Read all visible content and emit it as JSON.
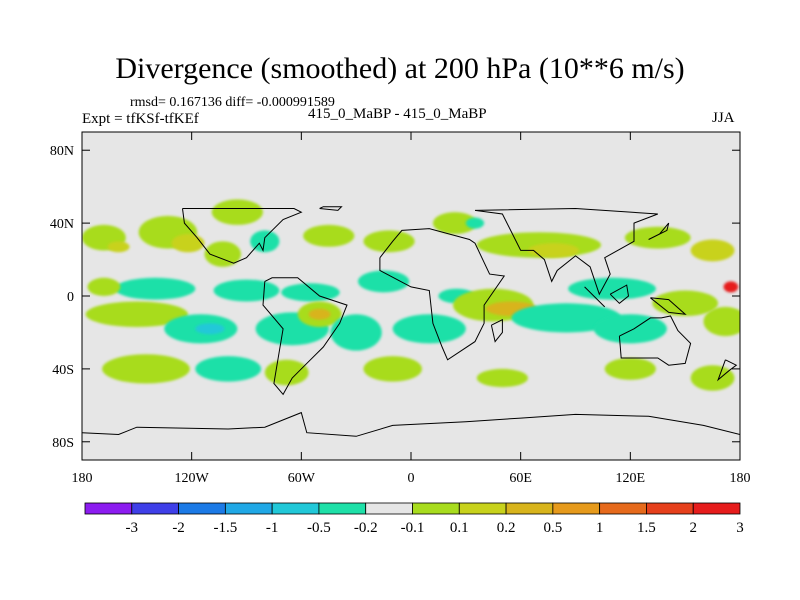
{
  "header": {
    "title": "Divergence (smoothed) at 200 hPa (10**6 m/s)",
    "stats": "rmsd= 0.167136 diff= -0.000991589",
    "expt": "Expt = tfKSf-tfKEf",
    "cases": "415_0_MaBP - 415_0_MaBP",
    "season": "JJA"
  },
  "chart_data": {
    "type": "heatmap",
    "title": "Divergence (smoothed) at 200 hPa (10**6 m/s)",
    "xlabel": "",
    "ylabel": "",
    "xlim": [
      -180,
      180
    ],
    "ylim": [
      -90,
      90
    ],
    "x_ticks": [
      {
        "value": -180,
        "label": "180"
      },
      {
        "value": -120,
        "label": "120W"
      },
      {
        "value": -60,
        "label": "60W"
      },
      {
        "value": 0,
        "label": "0"
      },
      {
        "value": 60,
        "label": "60E"
      },
      {
        "value": 120,
        "label": "120E"
      },
      {
        "value": 180,
        "label": "180"
      }
    ],
    "y_ticks": [
      {
        "value": 80,
        "label": "80N"
      },
      {
        "value": 40,
        "label": "40N"
      },
      {
        "value": 0,
        "label": "0"
      },
      {
        "value": -40,
        "label": "40S"
      },
      {
        "value": -80,
        "label": "80S"
      }
    ],
    "colorbar": {
      "colors": [
        "#8c1cf0",
        "#3f3fe8",
        "#1c7ae6",
        "#20a8e6",
        "#21c8d8",
        "#1ee0a8",
        "#e6e6e6",
        "#a8dc1e",
        "#c8d21c",
        "#d8b41c",
        "#e69a1c",
        "#e66a1c",
        "#e6401c",
        "#e61c1c"
      ],
      "labels": [
        "-3",
        "-2",
        "-1.5",
        "-1",
        "-0.5",
        "-0.2",
        "-0.1",
        "0.1",
        "0.2",
        "0.5",
        "1",
        "1.5",
        "2",
        "3"
      ]
    },
    "blobs": [
      {
        "lon": -168,
        "lat": 32,
        "rlon": 12,
        "rlat": 7,
        "level": 7
      },
      {
        "lon": -160,
        "lat": 27,
        "rlon": 6,
        "rlat": 3,
        "level": 8
      },
      {
        "lon": -133,
        "lat": 35,
        "rlon": 16,
        "rlat": 9,
        "level": 7
      },
      {
        "lon": -122,
        "lat": 29,
        "rlon": 9,
        "rlat": 5,
        "level": 8
      },
      {
        "lon": -95,
        "lat": 46,
        "rlon": 14,
        "rlat": 7,
        "level": 7
      },
      {
        "lon": -103,
        "lat": 23,
        "rlon": 10,
        "rlat": 7,
        "level": 7
      },
      {
        "lon": -80,
        "lat": 30,
        "rlon": 8,
        "rlat": 6,
        "level": 5
      },
      {
        "lon": -45,
        "lat": 33,
        "rlon": 14,
        "rlat": 6,
        "level": 7
      },
      {
        "lon": -12,
        "lat": 30,
        "rlon": 14,
        "rlat": 6,
        "level": 7
      },
      {
        "lon": 24,
        "lat": 40,
        "rlon": 12,
        "rlat": 6,
        "level": 7
      },
      {
        "lon": 70,
        "lat": 28,
        "rlon": 34,
        "rlat": 7,
        "level": 7
      },
      {
        "lon": 78,
        "lat": 25,
        "rlon": 14,
        "rlat": 4,
        "level": 8
      },
      {
        "lon": 135,
        "lat": 32,
        "rlon": 18,
        "rlat": 6,
        "level": 7
      },
      {
        "lon": 165,
        "lat": 25,
        "rlon": 12,
        "rlat": 6,
        "level": 8
      },
      {
        "lon": -140,
        "lat": 4,
        "rlon": 22,
        "rlat": 6,
        "level": 5
      },
      {
        "lon": -90,
        "lat": 3,
        "rlon": 18,
        "rlat": 6,
        "level": 5
      },
      {
        "lon": -55,
        "lat": 2,
        "rlon": 16,
        "rlat": 5,
        "level": 5
      },
      {
        "lon": -15,
        "lat": 8,
        "rlon": 14,
        "rlat": 6,
        "level": 5
      },
      {
        "lon": 25,
        "lat": 0,
        "rlon": 10,
        "rlat": 4,
        "level": 5
      },
      {
        "lon": 110,
        "lat": 4,
        "rlon": 24,
        "rlat": 6,
        "level": 5
      },
      {
        "lon": -168,
        "lat": 5,
        "rlon": 9,
        "rlat": 5,
        "level": 7
      },
      {
        "lon": -150,
        "lat": -10,
        "rlon": 28,
        "rlat": 7,
        "level": 7
      },
      {
        "lon": -115,
        "lat": -18,
        "rlon": 20,
        "rlat": 8,
        "level": 5
      },
      {
        "lon": -110,
        "lat": -18,
        "rlon": 8,
        "rlat": 3,
        "level": 4
      },
      {
        "lon": -65,
        "lat": -18,
        "rlon": 20,
        "rlat": 9,
        "level": 5
      },
      {
        "lon": -50,
        "lat": -10,
        "rlon": 12,
        "rlat": 7,
        "level": 7
      },
      {
        "lon": -50,
        "lat": -10,
        "rlon": 6,
        "rlat": 3,
        "level": 9
      },
      {
        "lon": -30,
        "lat": -20,
        "rlon": 14,
        "rlat": 10,
        "level": 5
      },
      {
        "lon": 10,
        "lat": -18,
        "rlon": 20,
        "rlat": 8,
        "level": 5
      },
      {
        "lon": 45,
        "lat": -5,
        "rlon": 22,
        "rlat": 9,
        "level": 7
      },
      {
        "lon": 55,
        "lat": -7,
        "rlon": 14,
        "rlat": 4,
        "level": 9
      },
      {
        "lon": 85,
        "lat": -12,
        "rlon": 30,
        "rlat": 8,
        "level": 5
      },
      {
        "lon": 120,
        "lat": -18,
        "rlon": 20,
        "rlat": 8,
        "level": 5
      },
      {
        "lon": 150,
        "lat": -4,
        "rlon": 18,
        "rlat": 7,
        "level": 7
      },
      {
        "lon": 172,
        "lat": -14,
        "rlon": 12,
        "rlat": 8,
        "level": 7
      },
      {
        "lon": -145,
        "lat": -40,
        "rlon": 24,
        "rlat": 8,
        "level": 7
      },
      {
        "lon": -100,
        "lat": -40,
        "rlon": 18,
        "rlat": 7,
        "level": 5
      },
      {
        "lon": -68,
        "lat": -42,
        "rlon": 12,
        "rlat": 7,
        "level": 7
      },
      {
        "lon": -10,
        "lat": -40,
        "rlon": 16,
        "rlat": 7,
        "level": 7
      },
      {
        "lon": 50,
        "lat": -45,
        "rlon": 14,
        "rlat": 5,
        "level": 7
      },
      {
        "lon": 120,
        "lat": -40,
        "rlon": 14,
        "rlat": 6,
        "level": 7
      },
      {
        "lon": 165,
        "lat": -45,
        "rlon": 12,
        "rlat": 7,
        "level": 7
      },
      {
        "lon": 35,
        "lat": 40,
        "rlon": 5,
        "rlat": 3,
        "level": 5
      },
      {
        "lon": 175,
        "lat": 5,
        "rlon": 4,
        "rlat": 3,
        "level": 13
      }
    ],
    "coastlines": [
      {
        "name": "africa-outline",
        "points": [
          [
            -17,
            21
          ],
          [
            -10,
            30
          ],
          [
            -5,
            36
          ],
          [
            10,
            37
          ],
          [
            32,
            31
          ],
          [
            35,
            29
          ],
          [
            43,
            12
          ],
          [
            51,
            11
          ],
          [
            40,
            -5
          ],
          [
            40,
            -15
          ],
          [
            35,
            -25
          ],
          [
            20,
            -35
          ],
          [
            17,
            -28
          ],
          [
            12,
            -15
          ],
          [
            10,
            3
          ],
          [
            0,
            5
          ],
          [
            -17,
            14
          ],
          [
            -17,
            21
          ]
        ]
      },
      {
        "name": "south-america-outline",
        "points": [
          [
            -80,
            8
          ],
          [
            -76,
            10
          ],
          [
            -62,
            10
          ],
          [
            -50,
            0
          ],
          [
            -35,
            -5
          ],
          [
            -39,
            -15
          ],
          [
            -48,
            -28
          ],
          [
            -58,
            -38
          ],
          [
            -65,
            -45
          ],
          [
            -70,
            -54
          ],
          [
            -75,
            -48
          ],
          [
            -72,
            -30
          ],
          [
            -70,
            -18
          ],
          [
            -81,
            -5
          ],
          [
            -80,
            8
          ]
        ]
      },
      {
        "name": "north-america-outline",
        "points": [
          [
            -125,
            48
          ],
          [
            -124,
            40
          ],
          [
            -117,
            32
          ],
          [
            -110,
            23
          ],
          [
            -97,
            18
          ],
          [
            -90,
            21
          ],
          [
            -83,
            29
          ],
          [
            -81,
            25
          ],
          [
            -80,
            32
          ],
          [
            -70,
            42
          ],
          [
            -60,
            46
          ],
          [
            -64,
            48
          ],
          [
            -78,
            48
          ],
          [
            -125,
            48
          ]
        ]
      },
      {
        "name": "asia-outline",
        "points": [
          [
            35,
            47
          ],
          [
            50,
            45
          ],
          [
            60,
            25
          ],
          [
            67,
            25
          ],
          [
            73,
            20
          ],
          [
            77,
            8
          ],
          [
            80,
            14
          ],
          [
            90,
            22
          ],
          [
            98,
            16
          ],
          [
            103,
            1
          ],
          [
            109,
            12
          ],
          [
            106,
            21
          ],
          [
            122,
            30
          ],
          [
            122,
            40
          ],
          [
            135,
            45
          ],
          [
            90,
            48
          ],
          [
            35,
            47
          ]
        ]
      },
      {
        "name": "australia-outline",
        "points": [
          [
            114,
            -22
          ],
          [
            122,
            -18
          ],
          [
            131,
            -12
          ],
          [
            137,
            -12
          ],
          [
            142,
            -11
          ],
          [
            146,
            -19
          ],
          [
            153,
            -26
          ],
          [
            150,
            -37
          ],
          [
            141,
            -38
          ],
          [
            135,
            -34
          ],
          [
            122,
            -34
          ],
          [
            115,
            -34
          ],
          [
            114,
            -22
          ]
        ]
      },
      {
        "name": "antarctica-outline",
        "points": [
          [
            -180,
            -75
          ],
          [
            -160,
            -76
          ],
          [
            -150,
            -72
          ],
          [
            -100,
            -73
          ],
          [
            -80,
            -72
          ],
          [
            -60,
            -64
          ],
          [
            -57,
            -75
          ],
          [
            -30,
            -77
          ],
          [
            -10,
            -71
          ],
          [
            30,
            -69
          ],
          [
            60,
            -67
          ],
          [
            90,
            -65
          ],
          [
            130,
            -66
          ],
          [
            160,
            -71
          ],
          [
            180,
            -76
          ]
        ]
      },
      {
        "name": "madagascar-outline",
        "points": [
          [
            44,
            -16
          ],
          [
            50,
            -13
          ],
          [
            50,
            -20
          ],
          [
            46,
            -25
          ],
          [
            44,
            -16
          ]
        ]
      },
      {
        "name": "new-zealand-outline",
        "points": [
          [
            172,
            -35
          ],
          [
            178,
            -38
          ],
          [
            174,
            -41
          ],
          [
            168,
            -46
          ],
          [
            172,
            -35
          ]
        ]
      },
      {
        "name": "greenland-outline",
        "points": [
          [
            -50,
            48
          ],
          [
            -40,
            47
          ],
          [
            -38,
            49
          ],
          [
            -48,
            49
          ],
          [
            -50,
            48
          ]
        ]
      },
      {
        "name": "borneo-outline",
        "points": [
          [
            109,
            1
          ],
          [
            118,
            6
          ],
          [
            119,
            0
          ],
          [
            114,
            -4
          ],
          [
            109,
            1
          ]
        ]
      },
      {
        "name": "sumatra-outline",
        "points": [
          [
            95,
            5
          ],
          [
            106,
            -6
          ],
          [
            103,
            -3
          ],
          [
            95,
            5
          ]
        ]
      },
      {
        "name": "new-guinea-outline",
        "points": [
          [
            131,
            -1
          ],
          [
            141,
            -2
          ],
          [
            150,
            -10
          ],
          [
            141,
            -9
          ],
          [
            131,
            -1
          ]
        ]
      },
      {
        "name": "japan-outline",
        "points": [
          [
            130,
            31
          ],
          [
            136,
            34
          ],
          [
            141,
            40
          ],
          [
            140,
            36
          ],
          [
            130,
            31
          ]
        ]
      }
    ]
  }
}
